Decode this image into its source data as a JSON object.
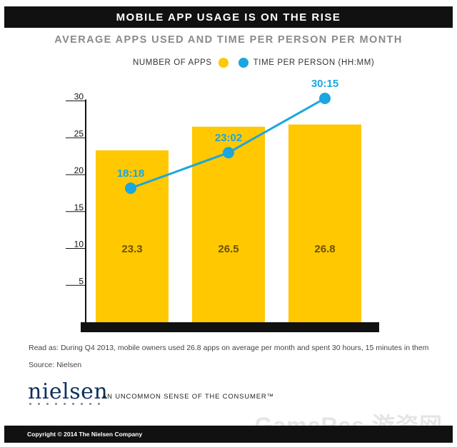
{
  "header": {
    "title": "MOBILE APP USAGE IS ON THE RISE"
  },
  "legend": {
    "apps_label": "NUMBER OF APPS",
    "time_label": "TIME PER PERSON  (HH:MM)"
  },
  "colors": {
    "bar": "#FFC800",
    "line": "#1AA6DF",
    "axis": "#111111"
  },
  "chart_data": {
    "type": "bar",
    "title": "AVERAGE APPS USED AND TIME PER PERSON PER MONTH",
    "categories": [
      "",
      "",
      ""
    ],
    "ylim": [
      0,
      30
    ],
    "yticks": [
      5,
      10,
      15,
      20,
      25,
      30
    ],
    "series": [
      {
        "name": "NUMBER OF APPS",
        "type": "bar",
        "values": [
          23.3,
          26.5,
          26.8
        ],
        "labels": [
          "23.3",
          "26.5",
          "26.8"
        ]
      },
      {
        "name": "TIME PER PERSON  (HH:MM)",
        "type": "line",
        "values": [
          18.3,
          23.03,
          30.25
        ],
        "labels": [
          "18:18",
          "23:02",
          "30:15"
        ]
      }
    ],
    "legend_position": "top"
  },
  "notes": {
    "read_as": "Read as: During Q4 2013, mobile owners used 26.8 apps on average per month and spent 30 hours, 15 minutes in them",
    "source": "Source: Nielsen"
  },
  "brand": {
    "logo": "nielsen",
    "tagline": "AN UNCOMMON SENSE OF THE CONSUMER™"
  },
  "footer": {
    "copyright": "Copyright © 2014 The Nielsen Company"
  },
  "watermark": "GameRes 游资网"
}
